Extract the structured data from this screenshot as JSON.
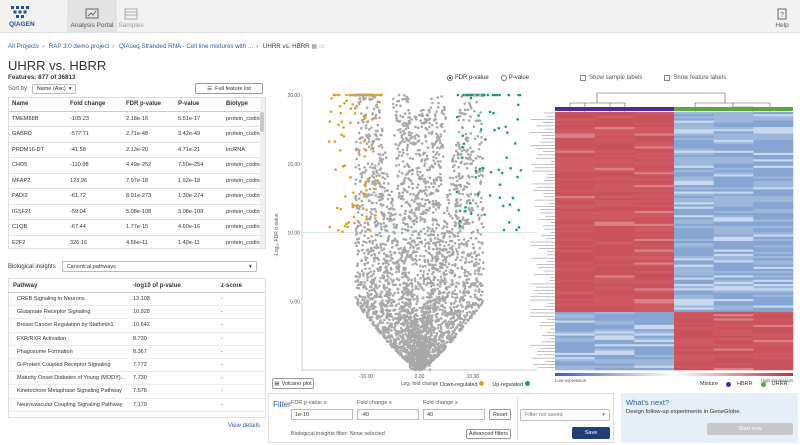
{
  "nav": {
    "logo_text": "QIAGEN",
    "tabs": [
      {
        "label": "Analysis Portal",
        "icon": "analysis-portal-icon"
      },
      {
        "label": "Samples",
        "icon": "samples-icon"
      }
    ],
    "help_label": "Help"
  },
  "breadcrumb": [
    "All Projects",
    "RAP 3.0 demo project",
    "QIAseq Stranded RNA - Cell line mixtures with ...",
    "UHRR vs. HBRR"
  ],
  "page": {
    "title": "UHRR vs. HBRR",
    "features": "Features: 877 of 36813",
    "sort_label": "Sort by:",
    "sort_value": "Name (Asc)",
    "full_feature_button": "Full feature list"
  },
  "gene_table": {
    "columns": [
      "Name",
      "Fold change",
      "FDR p-value",
      "P-value",
      "Biotype"
    ],
    "rows": [
      [
        "TMEM88B",
        "-105.23",
        "2.18e-16",
        "5.51e-17",
        "protein_coding"
      ],
      [
        "GABRD",
        "-577.71",
        "2.71e-48",
        "3.42e-49",
        "protein_coding"
      ],
      [
        "PRDM16-DT",
        "-41.58",
        "2.13e-20",
        "4.71e-21",
        "lncRNA"
      ],
      [
        "CHD5",
        "-110.98",
        "4.49e-252",
        "7.50e-254",
        "protein_coding"
      ],
      [
        "MFAP2",
        "123.96",
        "7.97e-18",
        "1.92e-18",
        "protein_coding"
      ],
      [
        "PADI2",
        "-61.72",
        "8.91e-273",
        "1.30e-274",
        "protein_coding"
      ],
      [
        "IGSF21",
        "-59.04",
        "5.08e-108",
        "3.08e-109",
        "protein_coding"
      ],
      [
        "C1QB",
        "-67.44",
        "1.77e-15",
        "4.60e-16",
        "protein_coding"
      ],
      [
        "E2F2",
        "326.16",
        "4.56e-11",
        "1.40e-11",
        "protein_coding"
      ]
    ]
  },
  "insights": {
    "label": "Biological insights",
    "selected": "Canonical pathways",
    "columns": [
      "Pathway",
      "-log10 of p-value",
      "z-score"
    ],
    "rows": [
      [
        "CREB Signaling in Neurons",
        "13.108",
        "-"
      ],
      [
        "Glutamate Receptor Signaling",
        "10.928",
        "-"
      ],
      [
        "Breast Cancer Regulation by Stathmin1",
        "10.642",
        "-"
      ],
      [
        "FXR/RXR Activation",
        "8.730",
        "-"
      ],
      [
        "Phagosome Formation",
        "8.367",
        "-"
      ],
      [
        "G-Protein Coupled Receptor Signaling",
        "7.772",
        "-"
      ],
      [
        "Maturity Onset Diabetes of Young (MODY)...",
        "7.730",
        "-"
      ],
      [
        "Kinetochore Metaphase Signaling Pathway",
        "7.578",
        "-"
      ],
      [
        "Neurovascular Coupling Signaling Pathway",
        "7.179",
        "-"
      ]
    ],
    "view_details": "View details"
  },
  "volcano": {
    "options": [
      "FDR p-value",
      "P-value"
    ],
    "selected_option": "FDR p-value",
    "ylabel": "-Log₁₀ FDR p-value",
    "xlabel": "Log₂ fold change",
    "yticks": [
      "20.00",
      "15.00",
      "10.00",
      "5.00"
    ],
    "xticks": [
      "-10.00",
      "0.00",
      "10.00"
    ],
    "button": "Volcano plot",
    "legend": [
      {
        "label": "Down-regulated",
        "color": "#e0a020"
      },
      {
        "label": "Up-regulated",
        "color": "#17a06a"
      }
    ]
  },
  "heatmap": {
    "options": [
      "Show sample labels",
      "Show feature labels"
    ],
    "scale_low": "Low expression",
    "scale_high": "High expression",
    "legend_title": "Mixture",
    "legend": [
      {
        "label": "HBRR",
        "color": "#4a2aa0"
      },
      {
        "label": "UHRR",
        "color": "#5aa83a"
      }
    ]
  },
  "filter": {
    "title": "Filter",
    "fields": [
      {
        "label": "FDR p-value ≤",
        "value": "1e-10"
      },
      {
        "label": "Fold change ≤",
        "value": "-40"
      },
      {
        "label": "Fold change ≥",
        "value": "40"
      }
    ],
    "reset": "Reset",
    "biological_filter": "Biological insights filter: None selected",
    "advanced": "Advanced filters",
    "saved_select": "Filter not saved",
    "save": "Save"
  },
  "whats_next": {
    "title": "What's next?",
    "text": "Design follow-up experiments in GeneGlobe.",
    "button": "Start now"
  },
  "colors": {
    "down": "#e0a020",
    "up": "#17a06a",
    "nonsig": "#a8a8a8",
    "high": "#cd5a63",
    "low": "#9db7db",
    "link": "#2a5ea8",
    "save_button": "#1f3f78"
  }
}
